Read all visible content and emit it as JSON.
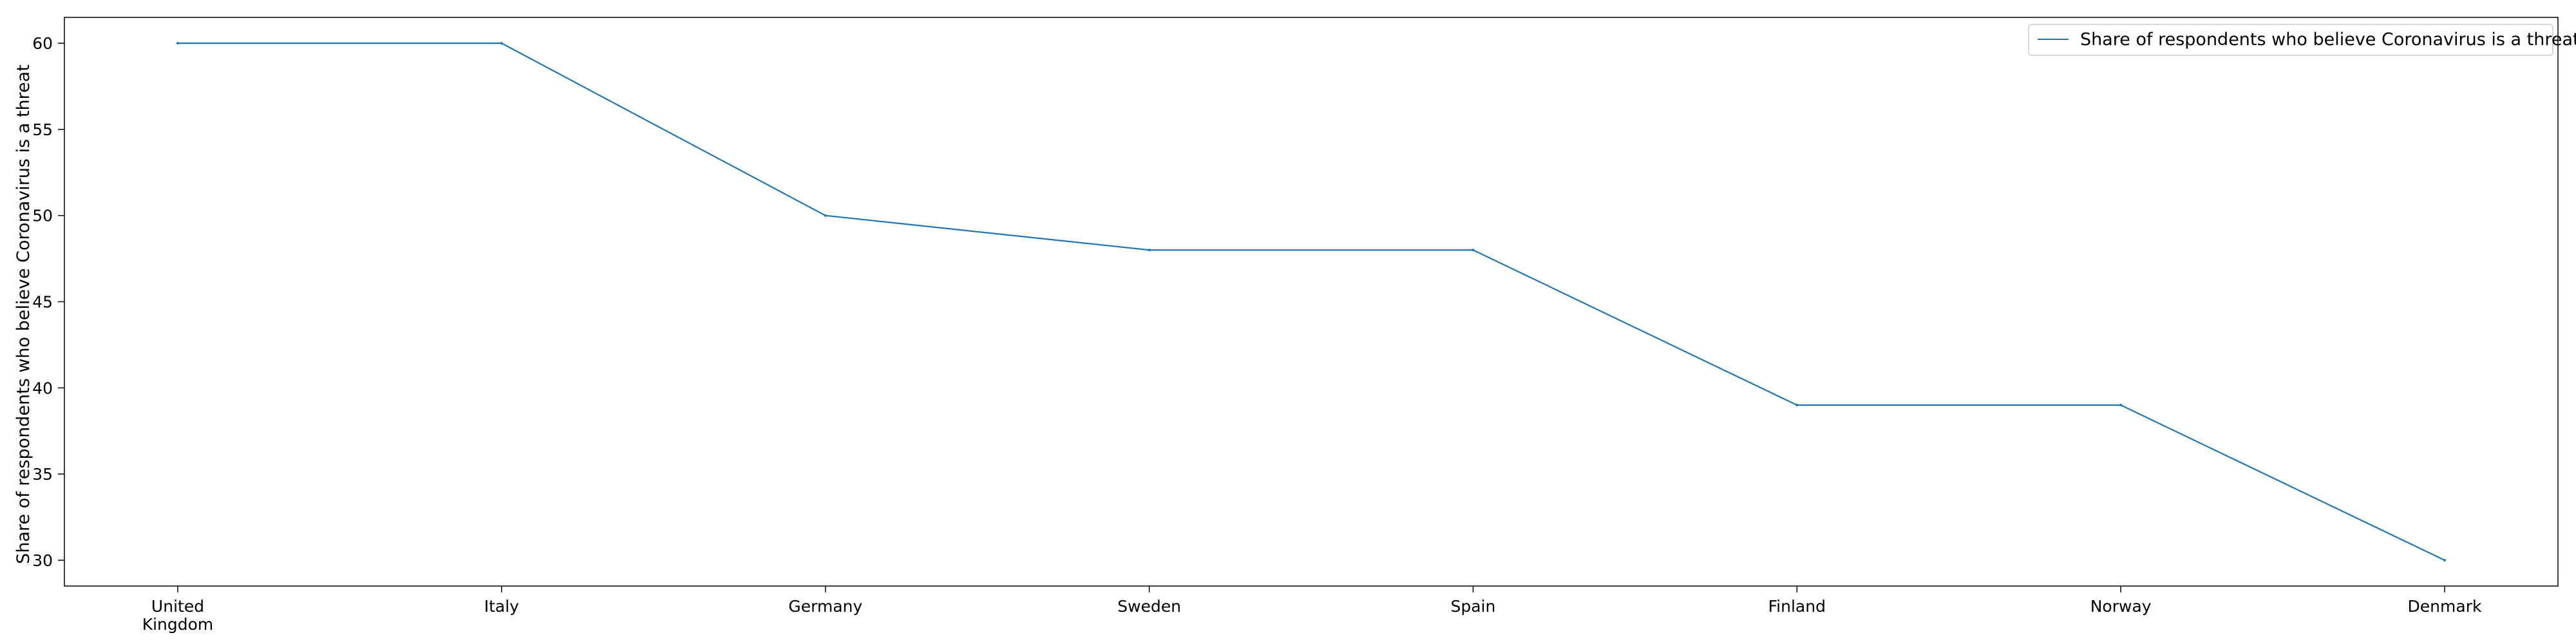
{
  "chart_data": {
    "type": "line",
    "categories": [
      "United\nKingdom",
      "Italy",
      "Germany",
      "Sweden",
      "Spain",
      "Finland",
      "Norway",
      "Denmark"
    ],
    "series": [
      {
        "name": "Share of respondents who believe Coronavirus is a threat",
        "values": [
          60,
          60,
          50,
          48,
          48,
          39,
          39,
          30
        ],
        "color": "#1f77b4"
      }
    ],
    "ylabel": "Share of respondents who believe Coronavirus is a threat",
    "xlabel": "",
    "ylim": [
      28.5,
      61.5
    ],
    "yticks": [
      30,
      35,
      40,
      45,
      50,
      55,
      60
    ],
    "grid": false,
    "legend_position": "top-right"
  }
}
